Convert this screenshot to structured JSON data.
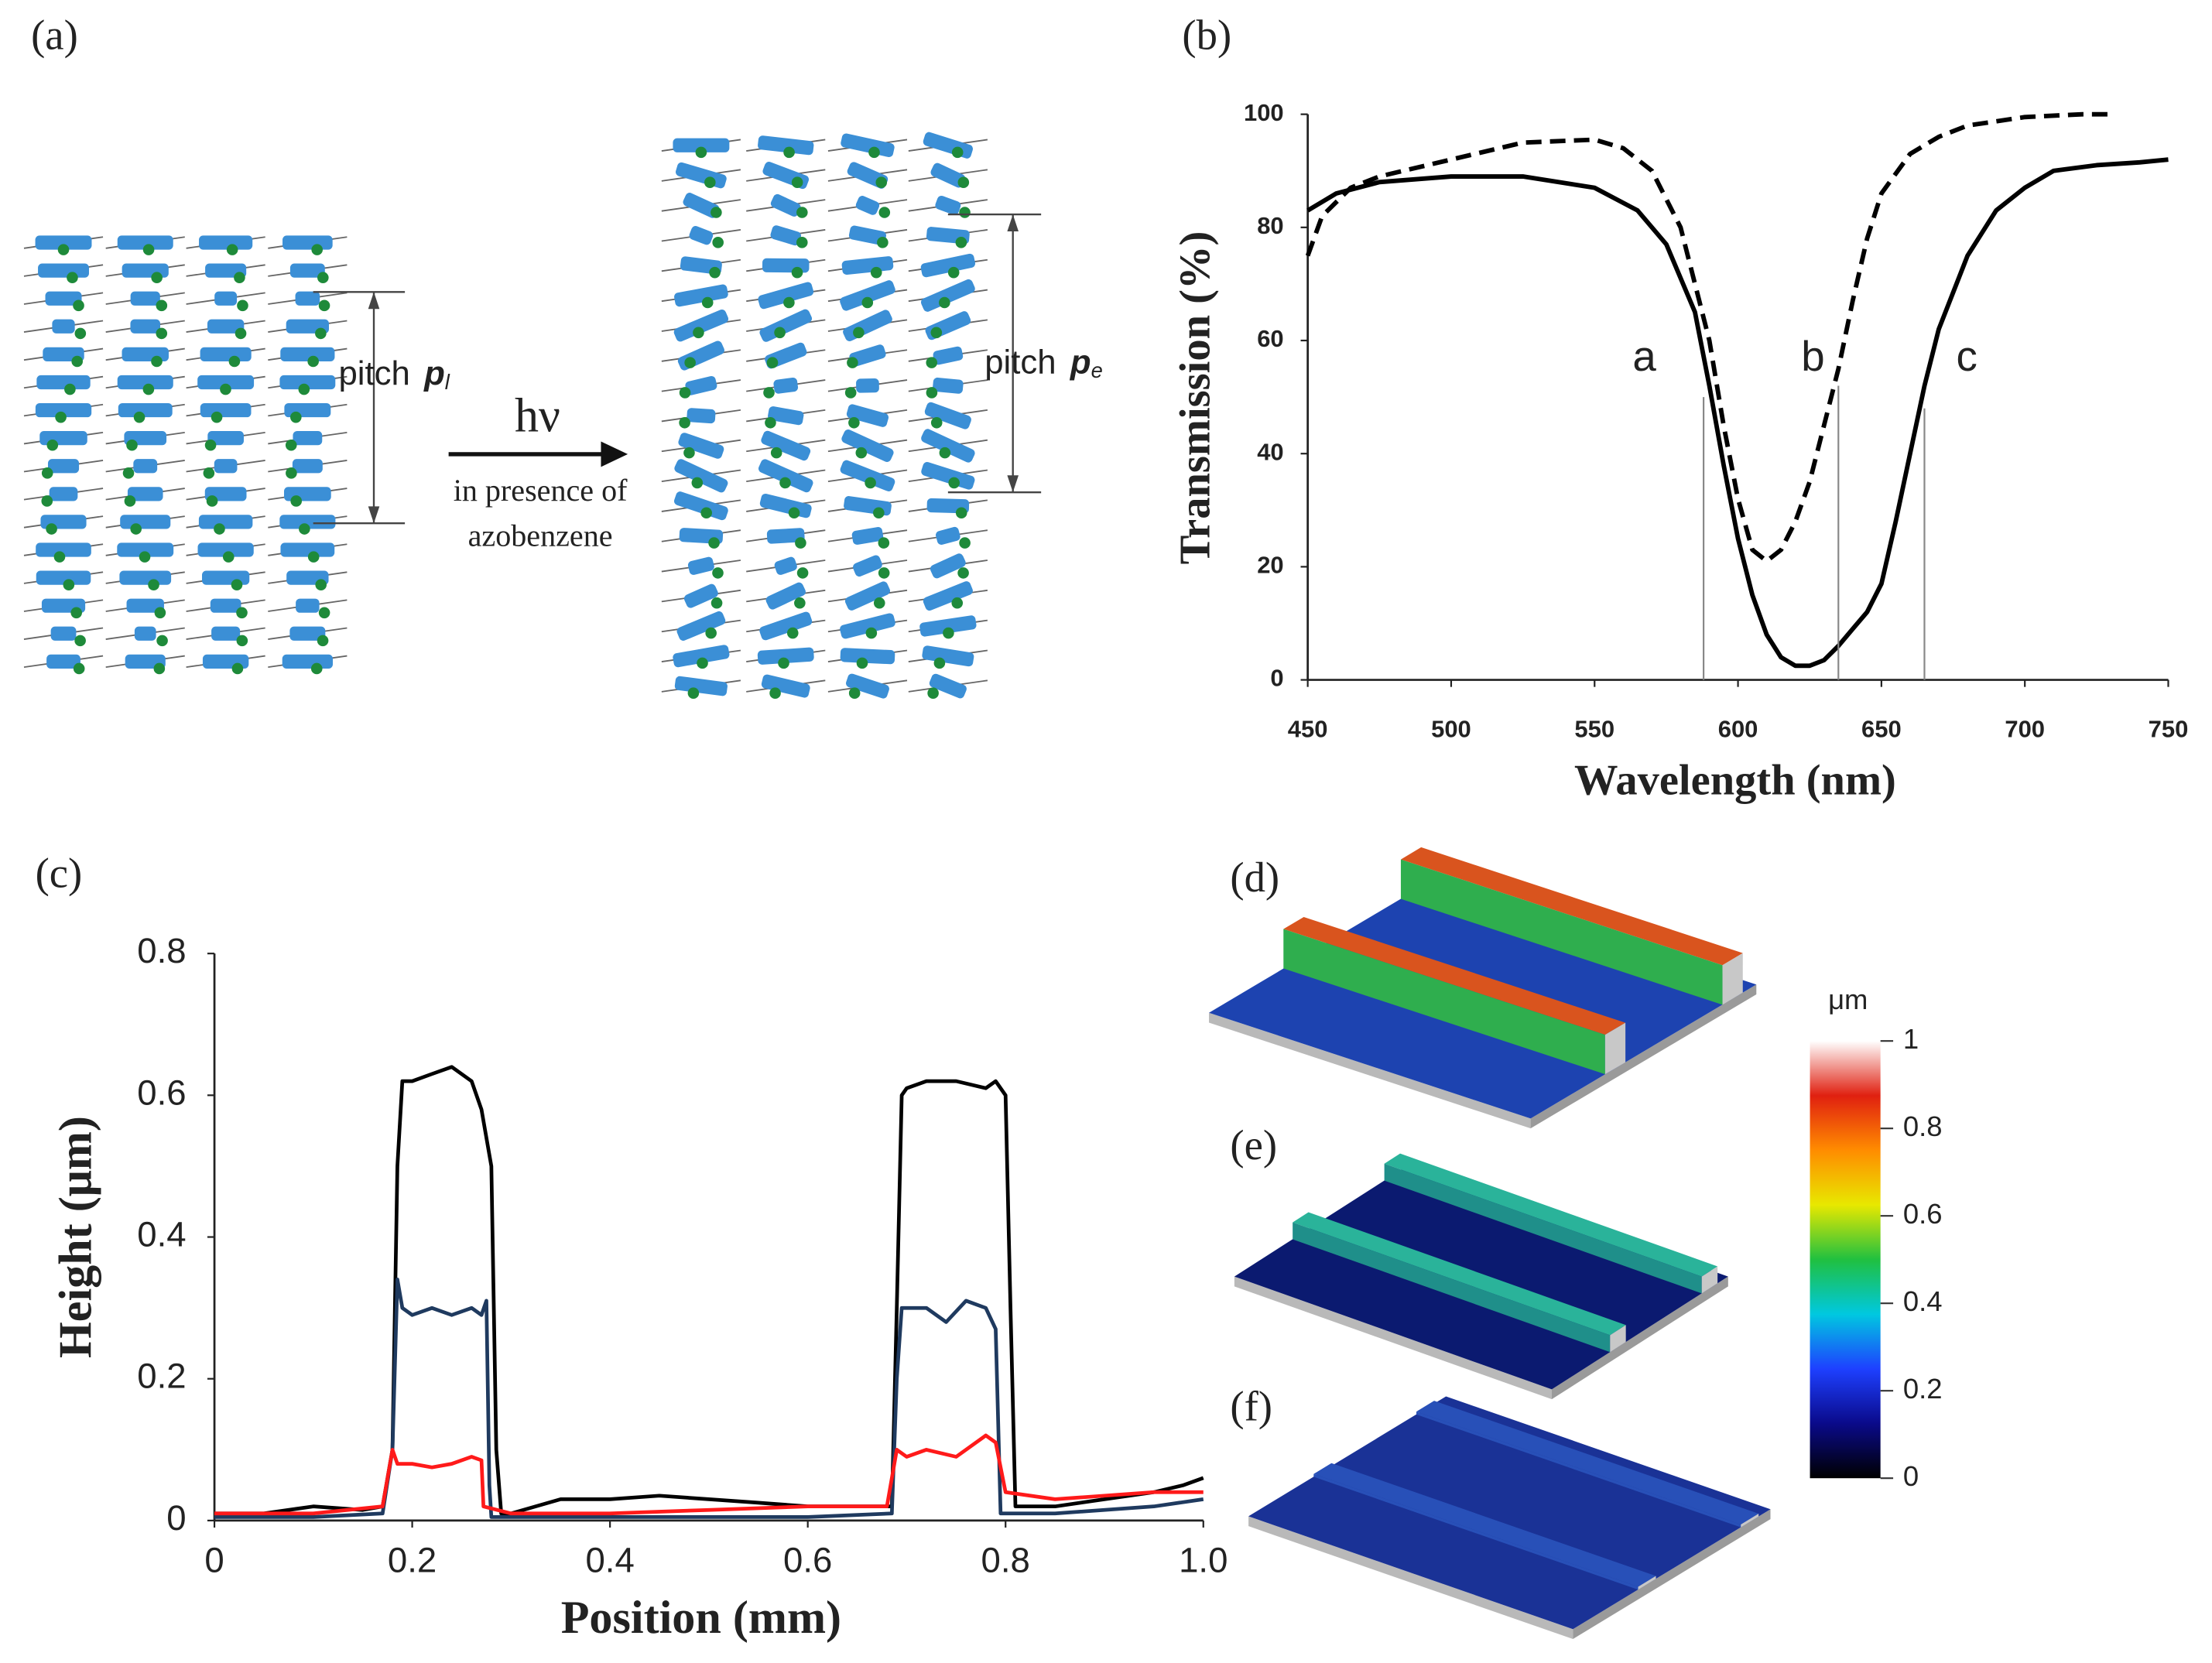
{
  "diagram": {
    "label": "(a)",
    "left_pitch": {
      "text": "pitch",
      "symbol": "p",
      "subscript": "l"
    },
    "right_pitch": {
      "text": "pitch",
      "symbol": "p",
      "subscript": "e"
    },
    "arrow": {
      "text": "hν",
      "caption": [
        "in presence of",
        "azobenzene"
      ]
    }
  },
  "chart_data": [
    {
      "type": "line",
      "label": "(b)",
      "x_label": "Wavelength (nm)",
      "y_label": "Transmission (%)",
      "xlim": [
        450,
        750
      ],
      "xticks": [
        450,
        500,
        550,
        600,
        650,
        700,
        750
      ],
      "ylim": [
        0,
        100
      ],
      "yticks": [
        0,
        20,
        40,
        60,
        80,
        100
      ],
      "series": [
        {
          "color": "#000000",
          "dash": "solid",
          "x": [
            450,
            460,
            475,
            500,
            525,
            550,
            565,
            575,
            585,
            590,
            595,
            600,
            605,
            610,
            615,
            620,
            625,
            630,
            635,
            640,
            645,
            650,
            655,
            660,
            665,
            670,
            680,
            690,
            700,
            710,
            725,
            740,
            750
          ],
          "values": [
            83,
            86,
            88,
            89,
            89,
            87,
            83,
            77,
            65,
            52,
            38,
            25,
            15,
            8,
            4,
            2.5,
            2.5,
            3.5,
            6,
            9,
            12,
            17,
            28,
            40,
            52,
            62,
            75,
            83,
            87,
            90,
            91,
            91.5,
            92
          ]
        },
        {
          "color": "#000000",
          "dash": "dashed",
          "x": [
            450,
            455,
            465,
            475,
            500,
            525,
            550,
            560,
            570,
            580,
            590,
            595,
            600,
            605,
            610,
            615,
            620,
            625,
            630,
            635,
            640,
            645,
            650,
            660,
            670,
            680,
            700,
            720,
            730
          ],
          "values": [
            75,
            82,
            87,
            89,
            92,
            95,
            95.5,
            94,
            90,
            80,
            60,
            45,
            32,
            23,
            21,
            23,
            28,
            35,
            45,
            55,
            67,
            78,
            86,
            93,
            96,
            98,
            99.5,
            100,
            100
          ]
        }
      ],
      "markers": [
        {
          "text": "a",
          "x": 588,
          "y": 50
        },
        {
          "text": "b",
          "x": 635,
          "y": 52
        },
        {
          "text": "c",
          "x": 665,
          "y": 48
        }
      ]
    },
    {
      "type": "line",
      "label": "(c)",
      "x_label": "Position (mm)",
      "y_label": "Height (μm)",
      "xlim": [
        0,
        1
      ],
      "xticks": [
        0,
        0.2,
        0.4,
        0.6,
        0.8,
        {
          "value": 1,
          "label": "1.0"
        }
      ],
      "ylim": [
        0,
        0.8
      ],
      "yticks": [
        0,
        0.2,
        0.4,
        0.6,
        0.8
      ],
      "series": [
        {
          "color": "#000000",
          "dash": "solid",
          "x": [
            0,
            0.05,
            0.1,
            0.15,
            0.17,
            0.18,
            0.185,
            0.19,
            0.2,
            0.22,
            0.24,
            0.26,
            0.27,
            0.28,
            0.285,
            0.29,
            0.3,
            0.35,
            0.4,
            0.45,
            0.5,
            0.55,
            0.6,
            0.65,
            0.685,
            0.69,
            0.695,
            0.7,
            0.72,
            0.75,
            0.78,
            0.79,
            0.8,
            0.805,
            0.81,
            0.85,
            0.9,
            0.95,
            0.98,
            1
          ],
          "values": [
            0.01,
            0.01,
            0.02,
            0.015,
            0.02,
            0.1,
            0.5,
            0.62,
            0.62,
            0.63,
            0.64,
            0.62,
            0.58,
            0.5,
            0.1,
            0.01,
            0.01,
            0.03,
            0.03,
            0.035,
            0.03,
            0.025,
            0.02,
            0.02,
            0.02,
            0.3,
            0.6,
            0.61,
            0.62,
            0.62,
            0.61,
            0.62,
            0.6,
            0.3,
            0.02,
            0.02,
            0.03,
            0.04,
            0.05,
            0.06
          ]
        },
        {
          "color": "#1f3a5f",
          "dash": "solid",
          "x": [
            0,
            0.1,
            0.17,
            0.18,
            0.185,
            0.19,
            0.2,
            0.22,
            0.24,
            0.26,
            0.27,
            0.275,
            0.278,
            0.28,
            0.4,
            0.6,
            0.685,
            0.69,
            0.695,
            0.7,
            0.72,
            0.74,
            0.76,
            0.78,
            0.79,
            0.795,
            0.85,
            0.95,
            1
          ],
          "values": [
            0.005,
            0.005,
            0.01,
            0.1,
            0.34,
            0.3,
            0.29,
            0.3,
            0.29,
            0.3,
            0.29,
            0.31,
            0.05,
            0.005,
            0.005,
            0.005,
            0.01,
            0.2,
            0.3,
            0.3,
            0.3,
            0.28,
            0.31,
            0.3,
            0.27,
            0.01,
            0.01,
            0.02,
            0.03
          ]
        },
        {
          "color": "#ff1a1a",
          "dash": "solid",
          "x": [
            0,
            0.1,
            0.17,
            0.18,
            0.185,
            0.2,
            0.22,
            0.24,
            0.26,
            0.27,
            0.272,
            0.3,
            0.4,
            0.5,
            0.6,
            0.68,
            0.69,
            0.7,
            0.72,
            0.75,
            0.78,
            0.79,
            0.8,
            0.85,
            0.9,
            0.95,
            1
          ],
          "values": [
            0.01,
            0.01,
            0.02,
            0.1,
            0.08,
            0.08,
            0.075,
            0.08,
            0.09,
            0.085,
            0.02,
            0.01,
            0.01,
            0.015,
            0.02,
            0.02,
            0.1,
            0.09,
            0.1,
            0.09,
            0.12,
            0.11,
            0.04,
            0.03,
            0.035,
            0.04,
            0.04
          ]
        }
      ]
    }
  ],
  "images": [
    {
      "label": "(d)"
    },
    {
      "label": "(e)"
    },
    {
      "label": "(f)"
    }
  ],
  "colorbar": {
    "unit": "μm",
    "lim": [
      0,
      1
    ],
    "ticks": [
      0,
      0.2,
      0.4,
      0.6,
      0.8,
      1
    ],
    "colors": [
      "#000000",
      "#0a0a8a",
      "#1e40ff",
      "#00c8e0",
      "#20c040",
      "#e8e800",
      "#ff8c00",
      "#e02010",
      "#ffffff"
    ]
  }
}
